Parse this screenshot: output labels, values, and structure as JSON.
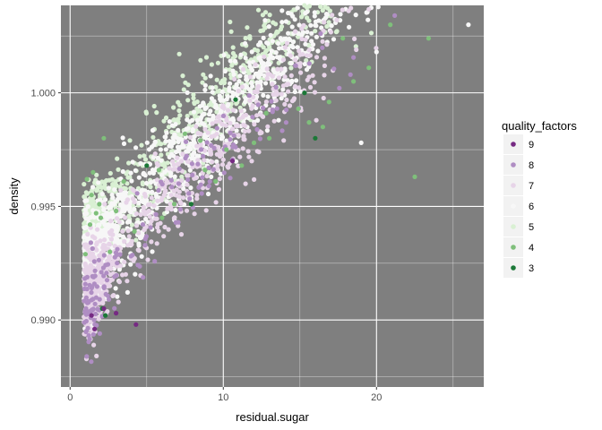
{
  "chart_data": {
    "type": "scatter",
    "title": "",
    "xlabel": "residual.sugar",
    "ylabel": "density",
    "xlim": [
      -0.6,
      27.0
    ],
    "ylim": [
      0.98705,
      1.00385
    ],
    "x_ticks": [
      0,
      10,
      20
    ],
    "x_tick_labels": [
      "0",
      "10",
      "20"
    ],
    "y_ticks": [
      0.99,
      0.995,
      1.0
    ],
    "y_tick_labels": [
      "0.990",
      "0.995",
      "1.000"
    ],
    "grid": true,
    "panel_background": "#7f7f7f",
    "grid_color": "#ffffff",
    "legend": {
      "title": "quality_factors",
      "placement": "right",
      "entries": [
        {
          "label": "9",
          "color": "#762a83"
        },
        {
          "label": "8",
          "color": "#af8dc3"
        },
        {
          "label": "7",
          "color": "#e7d4e8"
        },
        {
          "label": "6",
          "color": "#f7f7f7"
        },
        {
          "label": "5",
          "color": "#d9f0d3"
        },
        {
          "label": "4",
          "color": "#7fbf7b"
        },
        {
          "label": "3",
          "color": "#1b7837"
        }
      ]
    },
    "series": [
      {
        "name": "3",
        "color": "#1b7837",
        "points": [
          [
            5.0,
            0.9968
          ],
          [
            10.8,
            0.9997
          ],
          [
            2.1,
            0.9905
          ],
          [
            16.0,
            0.998
          ],
          [
            15.3,
            1.0
          ],
          [
            2.3,
            0.9902
          ],
          [
            7.9,
            0.9951
          ]
        ]
      },
      {
        "name": "4",
        "color": "#7fbf7b",
        "points": [
          [
            1.1,
            0.9962
          ],
          [
            1.5,
            0.9965
          ],
          [
            2.2,
            0.998
          ],
          [
            1.4,
            0.9955
          ],
          [
            6.0,
            0.9945
          ],
          [
            8.5,
            0.9979
          ],
          [
            12.0,
            0.9978
          ],
          [
            17.8,
            1.0024
          ],
          [
            23.4,
            1.0024
          ],
          [
            22.5,
            0.9963
          ],
          [
            16.5,
            0.9985
          ],
          [
            1.3,
            0.9942
          ],
          [
            3.5,
            0.9961
          ],
          [
            1.9,
            0.9951
          ],
          [
            11.2,
            0.9968
          ],
          [
            14.9,
            0.9993
          ],
          [
            19.5,
            1.0011
          ],
          [
            1.0,
            0.9929
          ],
          [
            6.8,
            0.9951
          ],
          [
            9.5,
            0.9961
          ],
          [
            4.2,
            0.9939
          ],
          [
            2.6,
            0.993
          ],
          [
            13.0,
            0.998
          ],
          [
            18.5,
            1.0005
          ],
          [
            1.7,
            0.9947
          ],
          [
            20.9,
            1.003
          ],
          [
            7.5,
            0.9982
          ],
          [
            15.6,
            0.9987
          ],
          [
            5.8,
            0.9966
          ],
          [
            10.2,
            0.9975
          ],
          [
            3.0,
            0.9948
          ],
          [
            12.8,
            0.9991
          ],
          [
            16.9,
            0.9996
          ],
          [
            8.8,
            0.9966
          ],
          [
            2.0,
            0.9945
          ]
        ]
      },
      {
        "name": "9",
        "color": "#762a83",
        "points": [
          [
            1.6,
            0.9896
          ],
          [
            2.2,
            0.9905
          ],
          [
            4.3,
            0.9898
          ],
          [
            10.6,
            0.997
          ],
          [
            1.4,
            0.9902
          ],
          [
            3.0,
            0.9903
          ]
        ]
      }
    ],
    "n_total_points": 4898
  }
}
